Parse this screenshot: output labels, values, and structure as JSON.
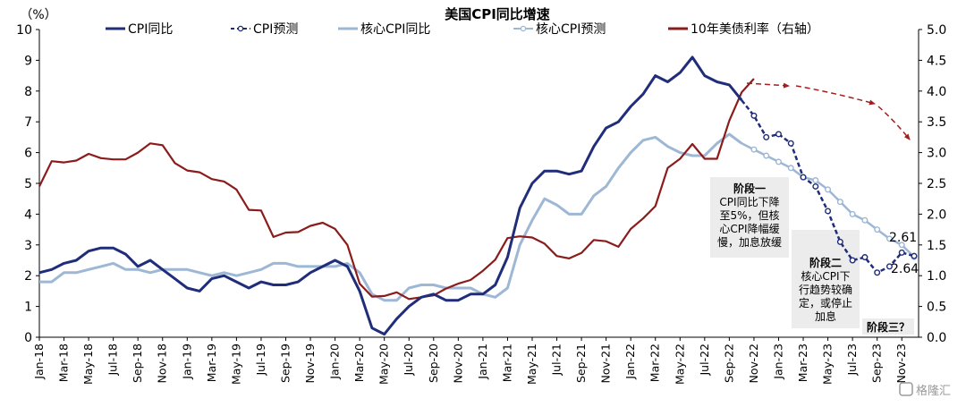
{
  "chart_data": {
    "type": "line",
    "title": "美国CPI同比增速",
    "ylabel_left": "（%）",
    "y_left_range": [
      0,
      10
    ],
    "y_right_range": [
      0,
      5
    ],
    "y_left_ticks": [
      "0",
      "1",
      "2",
      "3",
      "4",
      "5",
      "6",
      "7",
      "8",
      "9",
      "10"
    ],
    "y_right_ticks": [
      "0.0",
      "0.5",
      "1.0",
      "1.5",
      "2.0",
      "2.5",
      "3.0",
      "3.5",
      "4.0",
      "4.5",
      "5.0"
    ],
    "x_ticks": [
      "Jan-18",
      "Mar-18",
      "May-18",
      "Jul-18",
      "Sep-18",
      "Nov-18",
      "Jan-19",
      "Mar-19",
      "May-19",
      "Jul-19",
      "Sep-19",
      "Nov-19",
      "Jan-20",
      "Mar-20",
      "May-20",
      "Jul-20",
      "Sep-20",
      "Nov-20",
      "Jan-21",
      "Mar-21",
      "May-21",
      "Jul-21",
      "Sep-21",
      "Nov-21",
      "Jan-22",
      "Mar-22",
      "May-22",
      "Jul-22",
      "Sep-22",
      "Nov-22",
      "Jan-23",
      "Mar-23",
      "May-23",
      "Jul-23",
      "Sep-23",
      "Nov-23"
    ],
    "grid": false,
    "legend_position": "top",
    "series": [
      {
        "name": "CPI同比",
        "color": "#1f2d7a",
        "style": "solid",
        "axis": "left",
        "points": [
          [
            "Jan-18",
            2.1
          ],
          [
            "Feb-18",
            2.2
          ],
          [
            "Mar-18",
            2.4
          ],
          [
            "Apr-18",
            2.5
          ],
          [
            "May-18",
            2.8
          ],
          [
            "Jun-18",
            2.9
          ],
          [
            "Jul-18",
            2.9
          ],
          [
            "Aug-18",
            2.7
          ],
          [
            "Sep-18",
            2.3
          ],
          [
            "Oct-18",
            2.5
          ],
          [
            "Nov-18",
            2.2
          ],
          [
            "Dec-18",
            1.9
          ],
          [
            "Jan-19",
            1.6
          ],
          [
            "Feb-19",
            1.5
          ],
          [
            "Mar-19",
            1.9
          ],
          [
            "Apr-19",
            2.0
          ],
          [
            "May-19",
            1.8
          ],
          [
            "Jun-19",
            1.6
          ],
          [
            "Jul-19",
            1.8
          ],
          [
            "Aug-19",
            1.7
          ],
          [
            "Sep-19",
            1.7
          ],
          [
            "Oct-19",
            1.8
          ],
          [
            "Nov-19",
            2.1
          ],
          [
            "Dec-19",
            2.3
          ],
          [
            "Jan-20",
            2.5
          ],
          [
            "Feb-20",
            2.3
          ],
          [
            "Mar-20",
            1.5
          ],
          [
            "Apr-20",
            0.3
          ],
          [
            "May-20",
            0.1
          ],
          [
            "Jun-20",
            0.6
          ],
          [
            "Jul-20",
            1.0
          ],
          [
            "Aug-20",
            1.3
          ],
          [
            "Sep-20",
            1.4
          ],
          [
            "Oct-20",
            1.2
          ],
          [
            "Nov-20",
            1.2
          ],
          [
            "Dec-20",
            1.4
          ],
          [
            "Jan-21",
            1.4
          ],
          [
            "Feb-21",
            1.7
          ],
          [
            "Mar-21",
            2.6
          ],
          [
            "Apr-21",
            4.2
          ],
          [
            "May-21",
            5.0
          ],
          [
            "Jun-21",
            5.4
          ],
          [
            "Jul-21",
            5.4
          ],
          [
            "Aug-21",
            5.3
          ],
          [
            "Sep-21",
            5.4
          ],
          [
            "Oct-21",
            6.2
          ],
          [
            "Nov-21",
            6.8
          ],
          [
            "Dec-21",
            7.0
          ],
          [
            "Jan-22",
            7.5
          ],
          [
            "Feb-22",
            7.9
          ],
          [
            "Mar-22",
            8.5
          ],
          [
            "Apr-22",
            8.3
          ],
          [
            "May-22",
            8.6
          ],
          [
            "Jun-22",
            9.1
          ],
          [
            "Jul-22",
            8.5
          ],
          [
            "Aug-22",
            8.3
          ],
          [
            "Sep-22",
            8.2
          ],
          [
            "Oct-22",
            7.7
          ]
        ]
      },
      {
        "name": "CPI预测",
        "color": "#1f2d7a",
        "style": "dashed-markers",
        "axis": "left",
        "points": [
          [
            "Oct-22",
            7.7
          ],
          [
            "Nov-22",
            7.2
          ],
          [
            "Dec-22",
            6.5
          ],
          [
            "Jan-23",
            6.6
          ],
          [
            "Feb-23",
            6.3
          ],
          [
            "Mar-23",
            5.2
          ],
          [
            "Apr-23",
            4.9
          ],
          [
            "May-23",
            4.1
          ],
          [
            "Jun-23",
            3.1
          ],
          [
            "Jul-23",
            2.5
          ],
          [
            "Aug-23",
            2.6
          ],
          [
            "Sep-23",
            2.1
          ],
          [
            "Oct-23",
            2.3
          ],
          [
            "Nov-23",
            2.75
          ],
          [
            "Dec-23",
            2.64
          ]
        ]
      },
      {
        "name": "核心CPI同比",
        "color": "#9db7d5",
        "style": "solid",
        "axis": "left",
        "points": [
          [
            "Jan-18",
            1.8
          ],
          [
            "Feb-18",
            1.8
          ],
          [
            "Mar-18",
            2.1
          ],
          [
            "Apr-18",
            2.1
          ],
          [
            "May-18",
            2.2
          ],
          [
            "Jun-18",
            2.3
          ],
          [
            "Jul-18",
            2.4
          ],
          [
            "Aug-18",
            2.2
          ],
          [
            "Sep-18",
            2.2
          ],
          [
            "Oct-18",
            2.1
          ],
          [
            "Nov-18",
            2.2
          ],
          [
            "Dec-18",
            2.2
          ],
          [
            "Jan-19",
            2.2
          ],
          [
            "Feb-19",
            2.1
          ],
          [
            "Mar-19",
            2.0
          ],
          [
            "Apr-19",
            2.1
          ],
          [
            "May-19",
            2.0
          ],
          [
            "Jun-19",
            2.1
          ],
          [
            "Jul-19",
            2.2
          ],
          [
            "Aug-19",
            2.4
          ],
          [
            "Sep-19",
            2.4
          ],
          [
            "Oct-19",
            2.3
          ],
          [
            "Nov-19",
            2.3
          ],
          [
            "Dec-19",
            2.3
          ],
          [
            "Jan-20",
            2.3
          ],
          [
            "Feb-20",
            2.4
          ],
          [
            "Mar-20",
            2.1
          ],
          [
            "Apr-20",
            1.4
          ],
          [
            "May-20",
            1.2
          ],
          [
            "Jun-20",
            1.2
          ],
          [
            "Jul-20",
            1.6
          ],
          [
            "Aug-20",
            1.7
          ],
          [
            "Sep-20",
            1.7
          ],
          [
            "Oct-20",
            1.6
          ],
          [
            "Nov-20",
            1.6
          ],
          [
            "Dec-20",
            1.6
          ],
          [
            "Jan-21",
            1.4
          ],
          [
            "Feb-21",
            1.3
          ],
          [
            "Mar-21",
            1.6
          ],
          [
            "Apr-21",
            3.0
          ],
          [
            "May-21",
            3.8
          ],
          [
            "Jun-21",
            4.5
          ],
          [
            "Jul-21",
            4.3
          ],
          [
            "Aug-21",
            4.0
          ],
          [
            "Sep-21",
            4.0
          ],
          [
            "Oct-21",
            4.6
          ],
          [
            "Nov-21",
            4.9
          ],
          [
            "Dec-21",
            5.5
          ],
          [
            "Jan-22",
            6.0
          ],
          [
            "Feb-22",
            6.4
          ],
          [
            "Mar-22",
            6.5
          ],
          [
            "Apr-22",
            6.2
          ],
          [
            "May-22",
            6.0
          ],
          [
            "Jun-22",
            5.9
          ],
          [
            "Jul-22",
            5.9
          ],
          [
            "Aug-22",
            6.3
          ],
          [
            "Sep-22",
            6.6
          ],
          [
            "Oct-22",
            6.3
          ]
        ]
      },
      {
        "name": "核心CPI预测",
        "color": "#9db7d5",
        "style": "markers",
        "axis": "left",
        "points": [
          [
            "Oct-22",
            6.3
          ],
          [
            "Nov-22",
            6.1
          ],
          [
            "Dec-22",
            5.9
          ],
          [
            "Jan-23",
            5.7
          ],
          [
            "Feb-23",
            5.5
          ],
          [
            "Mar-23",
            5.2
          ],
          [
            "Apr-23",
            5.1
          ],
          [
            "May-23",
            4.8
          ],
          [
            "Jun-23",
            4.4
          ],
          [
            "Jul-23",
            4.0
          ],
          [
            "Aug-23",
            3.8
          ],
          [
            "Sep-23",
            3.5
          ],
          [
            "Oct-23",
            3.2
          ],
          [
            "Nov-23",
            3.0
          ],
          [
            "Dec-23",
            2.61
          ]
        ]
      },
      {
        "name": "10年美债利率（右轴）",
        "color": "#8b1c1c",
        "style": "solid",
        "axis": "right",
        "points": [
          [
            "Jan-18",
            2.45
          ],
          [
            "Feb-18",
            2.86
          ],
          [
            "Mar-18",
            2.84
          ],
          [
            "Apr-18",
            2.87
          ],
          [
            "May-18",
            2.98
          ],
          [
            "Jun-18",
            2.91
          ],
          [
            "Jul-18",
            2.89
          ],
          [
            "Aug-18",
            2.89
          ],
          [
            "Sep-18",
            3.0
          ],
          [
            "Oct-18",
            3.15
          ],
          [
            "Nov-18",
            3.12
          ],
          [
            "Dec-18",
            2.83
          ],
          [
            "Jan-19",
            2.71
          ],
          [
            "Feb-19",
            2.68
          ],
          [
            "Mar-19",
            2.57
          ],
          [
            "Apr-19",
            2.53
          ],
          [
            "May-19",
            2.4
          ],
          [
            "Jun-19",
            2.07
          ],
          [
            "Jul-19",
            2.06
          ],
          [
            "Aug-19",
            1.63
          ],
          [
            "Sep-19",
            1.7
          ],
          [
            "Oct-19",
            1.71
          ],
          [
            "Nov-19",
            1.81
          ],
          [
            "Dec-19",
            1.86
          ],
          [
            "Jan-20",
            1.76
          ],
          [
            "Feb-20",
            1.5
          ],
          [
            "Mar-20",
            0.87
          ],
          [
            "Apr-20",
            0.66
          ],
          [
            "May-20",
            0.67
          ],
          [
            "Jun-20",
            0.73
          ],
          [
            "Jul-20",
            0.62
          ],
          [
            "Aug-20",
            0.65
          ],
          [
            "Sep-20",
            0.68
          ],
          [
            "Oct-20",
            0.79
          ],
          [
            "Nov-20",
            0.87
          ],
          [
            "Dec-20",
            0.93
          ],
          [
            "Jan-21",
            1.08
          ],
          [
            "Feb-21",
            1.26
          ],
          [
            "Mar-21",
            1.61
          ],
          [
            "Apr-21",
            1.64
          ],
          [
            "May-21",
            1.62
          ],
          [
            "Jun-21",
            1.52
          ],
          [
            "Jul-21",
            1.32
          ],
          [
            "Aug-21",
            1.28
          ],
          [
            "Sep-21",
            1.37
          ],
          [
            "Oct-21",
            1.58
          ],
          [
            "Nov-21",
            1.56
          ],
          [
            "Dec-21",
            1.47
          ],
          [
            "Jan-22",
            1.76
          ],
          [
            "Feb-22",
            1.93
          ],
          [
            "Mar-22",
            2.13
          ],
          [
            "Apr-22",
            2.75
          ],
          [
            "May-22",
            2.9
          ],
          [
            "Jun-22",
            3.14
          ],
          [
            "Jul-22",
            2.9
          ],
          [
            "Aug-22",
            2.9
          ],
          [
            "Sep-22",
            3.52
          ],
          [
            "Oct-22",
            3.98
          ],
          [
            "Nov-22",
            4.2
          ]
        ]
      },
      {
        "name": "",
        "color": "#a01f1f",
        "style": "dashed-arrow",
        "axis": "right",
        "points": [
          [
            "Nov-22",
            4.15
          ],
          [
            "Feb-23",
            4.1
          ],
          [
            "Aug-23",
            3.8
          ],
          [
            "Dec-23",
            3.25
          ]
        ]
      }
    ],
    "annotations": [
      {
        "text_lines": [
          "阶段一",
          "CPI同比下降",
          "至5%，但核",
          "心CPI降幅缓",
          "慢，加息放缓"
        ]
      },
      {
        "text_lines": [
          "阶段二",
          "核心CPI下",
          "行趋势较确",
          "定，或停止",
          "加息"
        ]
      },
      {
        "text_lines": [
          "阶段三？"
        ]
      }
    ],
    "data_labels": [
      "2.61",
      "2.64"
    ]
  },
  "watermark": "格隆汇"
}
